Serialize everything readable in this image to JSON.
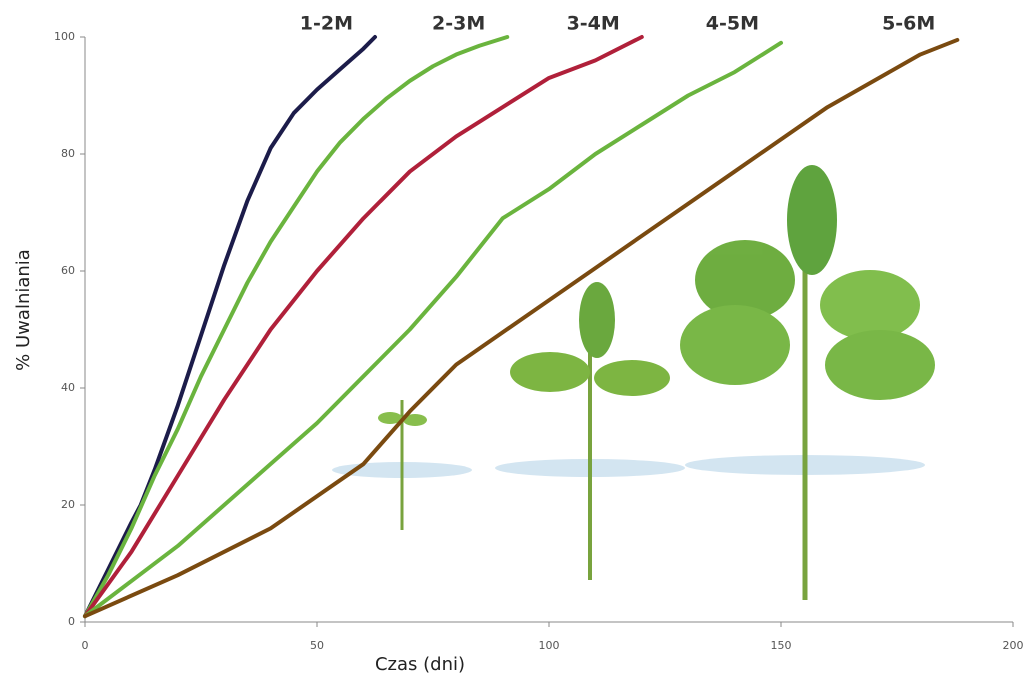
{
  "chart_data": {
    "type": "line",
    "x_label": "Czas (dni)",
    "y_label": "%  Uwalniania",
    "xlim": [
      0,
      200
    ],
    "ylim": [
      0,
      100
    ],
    "xticks": [
      0,
      50,
      100,
      150,
      200
    ],
    "yticks": [
      0,
      20,
      40,
      60,
      80,
      100
    ],
    "series": [
      {
        "name": "1-2M",
        "color": "#1c1c4a",
        "x": [
          0,
          5,
          10,
          12,
          15,
          20,
          25,
          30,
          35,
          40,
          45,
          50,
          55,
          60,
          62.5
        ],
        "values": [
          1,
          9,
          17,
          20,
          26,
          37,
          49,
          61,
          72,
          81,
          87,
          91,
          94.5,
          98,
          100
        ]
      },
      {
        "name": "2-3M",
        "color": "#6ab43e",
        "x": [
          0,
          5,
          10,
          15,
          20,
          25,
          30,
          35,
          40,
          45,
          50,
          55,
          60,
          65,
          70,
          75,
          80,
          85,
          91
        ],
        "values": [
          1,
          8,
          16,
          25,
          33,
          42,
          50,
          58,
          65,
          71,
          77,
          82,
          86,
          89.5,
          92.5,
          95,
          97,
          98.5,
          100
        ]
      },
      {
        "name": "3-4M",
        "color": "#b0203a",
        "x": [
          0,
          10,
          20,
          30,
          40,
          50,
          60,
          70,
          80,
          90,
          100,
          110,
          120
        ],
        "values": [
          1,
          12,
          25,
          38,
          50,
          60,
          69,
          77,
          83,
          88,
          93,
          96,
          100
        ]
      },
      {
        "name": "4-5M",
        "color": "#6ab43e",
        "x": [
          0,
          10,
          20,
          30,
          40,
          50,
          60,
          70,
          80,
          90,
          100,
          110,
          120,
          130,
          140,
          150
        ],
        "values": [
          1,
          7,
          13,
          20,
          27,
          34,
          42,
          50,
          59,
          69,
          74,
          80,
          85,
          90,
          94,
          99
        ]
      },
      {
        "name": "5-6M",
        "color": "#7a4a10",
        "x": [
          0,
          20,
          40,
          60,
          70,
          80,
          100,
          120,
          140,
          160,
          180,
          188
        ],
        "values": [
          1,
          8,
          16,
          27,
          36,
          44,
          55,
          66,
          77,
          88,
          97,
          99.5
        ]
      }
    ]
  }
}
